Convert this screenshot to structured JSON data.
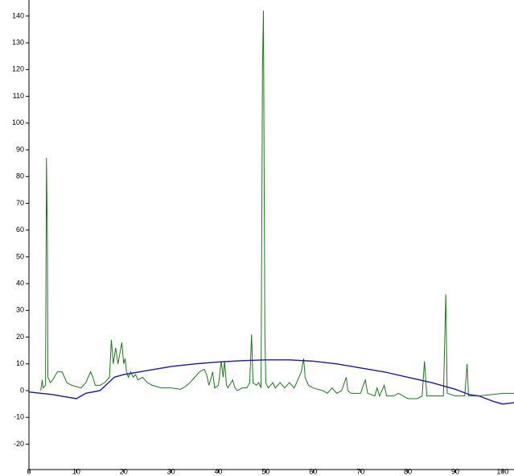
{
  "chart_data": {
    "type": "line",
    "xlim": [
      0,
      102.4
    ],
    "ylim": [
      -29.5,
      146
    ],
    "xticks": [
      0,
      10,
      20,
      30,
      40,
      50,
      60,
      70,
      80,
      90,
      100
    ],
    "yticks": [
      -20,
      -10,
      0,
      10,
      20,
      30,
      40,
      50,
      60,
      70,
      80,
      90,
      100,
      110,
      120,
      130,
      140
    ],
    "series": [
      {
        "color": "#1a7a1a",
        "x": [
          2.5,
          2.8,
          3.0,
          3.5,
          3.7,
          3.9,
          4.0,
          4.5,
          5,
          6,
          7,
          7.5,
          8,
          9,
          10,
          11,
          12,
          13,
          13.5,
          14,
          15,
          16,
          17,
          17.4,
          17.8,
          18.3,
          18.8,
          19.3,
          19.6,
          20,
          20.3,
          20.6,
          21,
          21.5,
          22,
          22.5,
          23,
          24,
          25,
          26,
          27,
          28,
          30,
          32,
          33,
          34,
          35,
          36,
          37,
          37.5,
          38,
          38.8,
          39.2,
          40,
          40.6,
          41,
          41.3,
          41.7,
          42,
          43,
          43.5,
          44,
          45,
          46,
          46.6,
          47,
          47.3,
          48,
          48.5,
          49,
          49.3,
          49.5,
          49.8,
          50,
          50.5,
          51,
          51.5,
          52,
          53,
          54,
          55,
          56,
          57,
          57.5,
          58,
          58.3,
          59,
          60,
          62,
          63,
          64,
          65,
          66,
          67,
          67.3,
          68,
          70,
          71,
          71.5,
          73,
          73.5,
          74,
          75,
          75.5,
          77,
          78,
          80,
          82,
          83,
          83.5,
          84,
          86,
          87.5,
          88,
          88.3,
          90,
          92,
          92.5,
          92.8,
          95,
          100,
          102.4
        ],
        "values": [
          0,
          4,
          1,
          2,
          87,
          54,
          5,
          3,
          4,
          7,
          7,
          5,
          3,
          2,
          1.5,
          1,
          3,
          7,
          5,
          2,
          2,
          3,
          5,
          19,
          10,
          16,
          10,
          15,
          18,
          10,
          12,
          7,
          5,
          7,
          5,
          6,
          4,
          5,
          3,
          2,
          1.5,
          1,
          1,
          0.5,
          1.5,
          3,
          5,
          7,
          8,
          6,
          2,
          7,
          1,
          2,
          11,
          5,
          11,
          2,
          1,
          4,
          1,
          0,
          1,
          1,
          3,
          21,
          3,
          2,
          3,
          1,
          121,
          142,
          22,
          3,
          1,
          2,
          3,
          1,
          3,
          1,
          3,
          1,
          5,
          7,
          12,
          5,
          2,
          1,
          0,
          -1,
          1,
          -1,
          0,
          5,
          0,
          -1,
          -1,
          4,
          -1,
          -2,
          1,
          -2,
          2,
          -2,
          -2,
          -1,
          -3,
          -3,
          -2,
          11,
          -2,
          -2,
          -2,
          36,
          -1,
          -2,
          -2,
          10,
          -2,
          -2,
          -1,
          -1
        ]
      },
      {
        "color": "#1a1aa8",
        "x": [
          0,
          5,
          10,
          11,
          12,
          15,
          16.5,
          18,
          20,
          25,
          30,
          35,
          40,
          45,
          50,
          55,
          60,
          65,
          70,
          75,
          80,
          85,
          90,
          93,
          95,
          98,
          100,
          102.4
        ],
        "values": [
          -0.5,
          -1.5,
          -3,
          -2,
          -1,
          0,
          2.5,
          5,
          6,
          7.5,
          9,
          10,
          10.7,
          11.2,
          11.5,
          11.5,
          11,
          10,
          8.5,
          7,
          5,
          3,
          0.5,
          -1.5,
          -2,
          -4,
          -5,
          -4.5
        ]
      }
    ]
  }
}
